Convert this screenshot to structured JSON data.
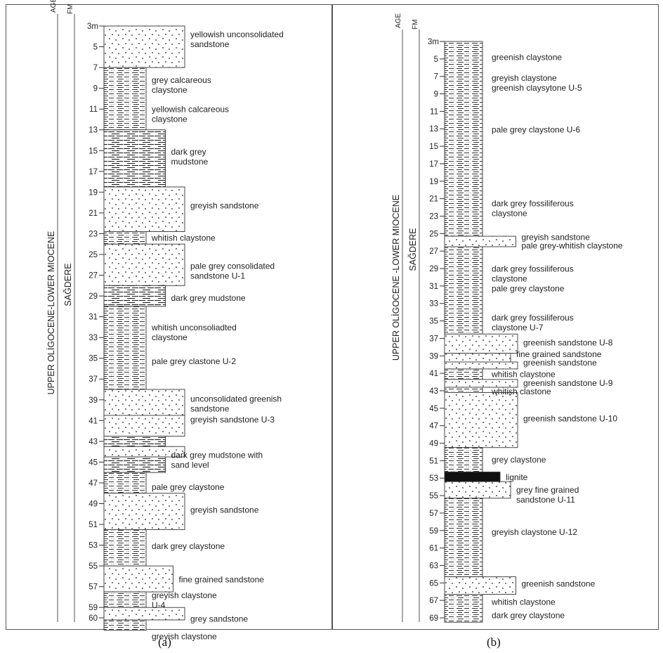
{
  "panels": [
    {
      "caption": "(a)",
      "age": "UPPER OLİGOCENE-LOWER MIOCENE",
      "formation": "SAĞDERE",
      "age_header": "AGE",
      "fm_header": "FM",
      "unit_m": "3m",
      "depth_ticks": [
        "5",
        "7",
        "9",
        "11",
        "13",
        "15",
        "17",
        "19",
        "21",
        "23",
        "25",
        "27",
        "29",
        "31",
        "33",
        "35",
        "37",
        "39",
        "41",
        "43",
        "45",
        "47",
        "49",
        "51",
        "53",
        "55",
        "57",
        "59",
        "60"
      ],
      "beds": [
        {
          "top": 3,
          "base": 7,
          "lith": "sandstone",
          "extent": 1.0
        },
        {
          "top": 7,
          "base": 13,
          "lith": "claystone",
          "extent": 0.0
        },
        {
          "top": 13,
          "base": 18.5,
          "lith": "mudstone",
          "extent": 0.5
        },
        {
          "top": 18.5,
          "base": 22.8,
          "lith": "sandstone",
          "extent": 1.0
        },
        {
          "top": 22.8,
          "base": 24,
          "lith": "claystone",
          "extent": 0.0
        },
        {
          "top": 24,
          "base": 28,
          "lith": "sandstone",
          "extent": 1.0
        },
        {
          "top": 28,
          "base": 30,
          "lith": "mudstone",
          "extent": 0.5
        },
        {
          "top": 30,
          "base": 38,
          "lith": "claystone",
          "extent": 0.0
        },
        {
          "top": 38,
          "base": 40.5,
          "lith": "sandstone",
          "extent": 1.0
        },
        {
          "top": 40.5,
          "base": 42.5,
          "lith": "sandstone",
          "extent": 1.0
        },
        {
          "top": 42.5,
          "base": 43.5,
          "lith": "mudstone",
          "extent": 0.5
        },
        {
          "top": 43.5,
          "base": 44.5,
          "lith": "sandstone",
          "extent": 1.0
        },
        {
          "top": 44.5,
          "base": 46,
          "lith": "mudstone",
          "extent": 0.5
        },
        {
          "top": 46,
          "base": 48,
          "lith": "claystone",
          "extent": 0.0
        },
        {
          "top": 48,
          "base": 51.5,
          "lith": "sandstone",
          "extent": 1.0
        },
        {
          "top": 51.5,
          "base": 55,
          "lith": "claystone",
          "extent": 0.0
        },
        {
          "top": 55,
          "base": 57.5,
          "lith": "sandstone",
          "extent": 0.7
        },
        {
          "top": 57.5,
          "base": 59,
          "lith": "claystone",
          "extent": 0.0
        },
        {
          "top": 59,
          "base": 60.2,
          "lith": "sandstone",
          "extent": 1.0
        },
        {
          "top": 60.2,
          "base": 61.2,
          "lith": "claystone",
          "extent": 0.0
        }
      ],
      "labels": [
        {
          "depth": 4.3,
          "lines": [
            "yellowish unconsolidated",
            "sandstone"
          ]
        },
        {
          "depth": 8.7,
          "lines": [
            "grey calcareous",
            "claystone"
          ]
        },
        {
          "depth": 11.5,
          "lines": [
            "yellowish calcareous",
            "claystone"
          ]
        },
        {
          "depth": 15.6,
          "lines": [
            "dark grey",
            "mudstone"
          ]
        },
        {
          "depth": 20.3,
          "lines": [
            "greyish sandstone"
          ]
        },
        {
          "depth": 23.4,
          "lines": [
            "whitish claystone"
          ]
        },
        {
          "depth": 26.6,
          "lines": [
            "pale grey consolidated",
            "sandstone U-1"
          ]
        },
        {
          "depth": 29.2,
          "lines": [
            "dark grey mudstone"
          ]
        },
        {
          "depth": 32.5,
          "lines": [
            "whitish unconsoliadted",
            "claystone"
          ]
        },
        {
          "depth": 35.3,
          "lines": [
            "pale grey clastone U-2"
          ]
        },
        {
          "depth": 39.4,
          "lines": [
            "unconsolidated greenish",
            "sandstone"
          ]
        },
        {
          "depth": 40.9,
          "lines": [
            "greyish sandstone U-3"
          ]
        },
        {
          "depth": 44.8,
          "lines": [
            "dark grey mudstone with",
            "sand level"
          ]
        },
        {
          "depth": 47.4,
          "lines": [
            "pale grey claystone"
          ]
        },
        {
          "depth": 49.6,
          "lines": [
            "greyish sandstone"
          ]
        },
        {
          "depth": 53.1,
          "lines": [
            "dark grey claystone"
          ]
        },
        {
          "depth": 56.3,
          "lines": [
            "fine grained sandstone"
          ]
        },
        {
          "depth": 58.3,
          "lines": [
            "greyish claystone",
            "U-4"
          ]
        },
        {
          "depth": 60.1,
          "lines": [
            "grey sandstone"
          ]
        },
        {
          "depth": 61.8,
          "lines": [
            "greyish claystone"
          ]
        }
      ]
    },
    {
      "caption": "(b)",
      "age": "UPPER OLİGOCENE -LOWER MIOCENE",
      "formation": "SAĞDERE",
      "age_header": "AGE",
      "fm_header": "FM",
      "unit_m": "3m",
      "depth_ticks": [
        "5",
        "7",
        "9",
        "11",
        "13",
        "15",
        "17",
        "19",
        "21",
        "23",
        "25",
        "27",
        "29",
        "31",
        "33",
        "35",
        "37",
        "39",
        "41",
        "43",
        "45",
        "47",
        "49",
        "51",
        "53",
        "55",
        "57",
        "59",
        "61",
        "63",
        "65",
        "67",
        "69"
      ],
      "beds": [
        {
          "top": 3,
          "base": 25.3,
          "lith": "claystone",
          "extent": 0.0
        },
        {
          "top": 25.3,
          "base": 26.5,
          "lith": "sandstone",
          "extent": 0.95
        },
        {
          "top": 26.5,
          "base": 36.5,
          "lith": "claystone",
          "extent": 0.0
        },
        {
          "top": 36.5,
          "base": 38.7,
          "lith": "sandstone",
          "extent": 1.0
        },
        {
          "top": 38.7,
          "base": 39.7,
          "lith": "sandstone",
          "extent": 0.8
        },
        {
          "top": 39.7,
          "base": 40.5,
          "lith": "sandstone",
          "extent": 1.0
        },
        {
          "top": 40.5,
          "base": 41.7,
          "lith": "claystone",
          "extent": 0.0
        },
        {
          "top": 41.7,
          "base": 42.6,
          "lith": "sandstone",
          "extent": 1.0
        },
        {
          "top": 42.6,
          "base": 43.2,
          "lith": "claystone",
          "extent": 0.0
        },
        {
          "top": 43.2,
          "base": 49.5,
          "lith": "sandstone",
          "extent": 1.0
        },
        {
          "top": 49.5,
          "base": 52.3,
          "lith": "claystone",
          "extent": 0.0
        },
        {
          "top": 52.3,
          "base": 53.4,
          "lith": "lignite",
          "extent": 0.5
        },
        {
          "top": 53.4,
          "base": 55.3,
          "lith": "sandstone",
          "extent": 0.8
        },
        {
          "top": 55.3,
          "base": 64.3,
          "lith": "claystone",
          "extent": 0.0
        },
        {
          "top": 64.3,
          "base": 66.3,
          "lith": "sandstone",
          "extent": 0.95
        },
        {
          "top": 66.3,
          "base": 69.5,
          "lith": "claystone",
          "extent": 0.0
        }
      ],
      "labels": [
        {
          "depth": 4.8,
          "lines": [
            "greenish claystone"
          ]
        },
        {
          "depth": 7.2,
          "lines": [
            "greyish claystone"
          ]
        },
        {
          "depth": 8.3,
          "lines": [
            "greenish claysytone U-5"
          ]
        },
        {
          "depth": 13.1,
          "lines": [
            "pale grey claystone U-6"
          ]
        },
        {
          "depth": 22.1,
          "lines": [
            "dark grey fossiliferous",
            "claystone"
          ]
        },
        {
          "depth": 25.4,
          "lines": [
            "greyish sandstone"
          ]
        },
        {
          "depth": 26.4,
          "lines": [
            "pale grey-whitish claystone"
          ]
        },
        {
          "depth": 29.6,
          "lines": [
            "dark grey fossiliferous",
            "claystone"
          ]
        },
        {
          "depth": 31.3,
          "lines": [
            "pale grey claystone"
          ]
        },
        {
          "depth": 35.2,
          "lines": [
            "dark grey fossiliferous",
            "claystone  U-7"
          ]
        },
        {
          "depth": 37.5,
          "lines": [
            "greenish sandstone U-8"
          ]
        },
        {
          "depth": 38.8,
          "lines": [
            "fine grained sandstone"
          ]
        },
        {
          "depth": 39.8,
          "lines": [
            "greenish sandstone"
          ]
        },
        {
          "depth": 41.1,
          "lines": [
            "whitish claystone"
          ]
        },
        {
          "depth": 42.1,
          "lines": [
            "greenish sandstone U-9"
          ]
        },
        {
          "depth": 43.1,
          "lines": [
            "whitish clastone"
          ]
        },
        {
          "depth": 46.2,
          "lines": [
            "greenish sandstone U-10"
          ]
        },
        {
          "depth": 50.9,
          "lines": [
            "grey claystone"
          ]
        },
        {
          "depth": 52.9,
          "lines": [
            "lignite"
          ]
        },
        {
          "depth": 54.9,
          "lines": [
            "grey fine grained",
            "sandstone U-11"
          ]
        },
        {
          "depth": 59.2,
          "lines": [
            "greyish claystone U-12"
          ]
        },
        {
          "depth": 65.1,
          "lines": [
            "greenish sandstone"
          ]
        },
        {
          "depth": 67.2,
          "lines": [
            "whitish claystone"
          ]
        },
        {
          "depth": 68.7,
          "lines": [
            "dark grey claystone"
          ]
        }
      ]
    }
  ]
}
